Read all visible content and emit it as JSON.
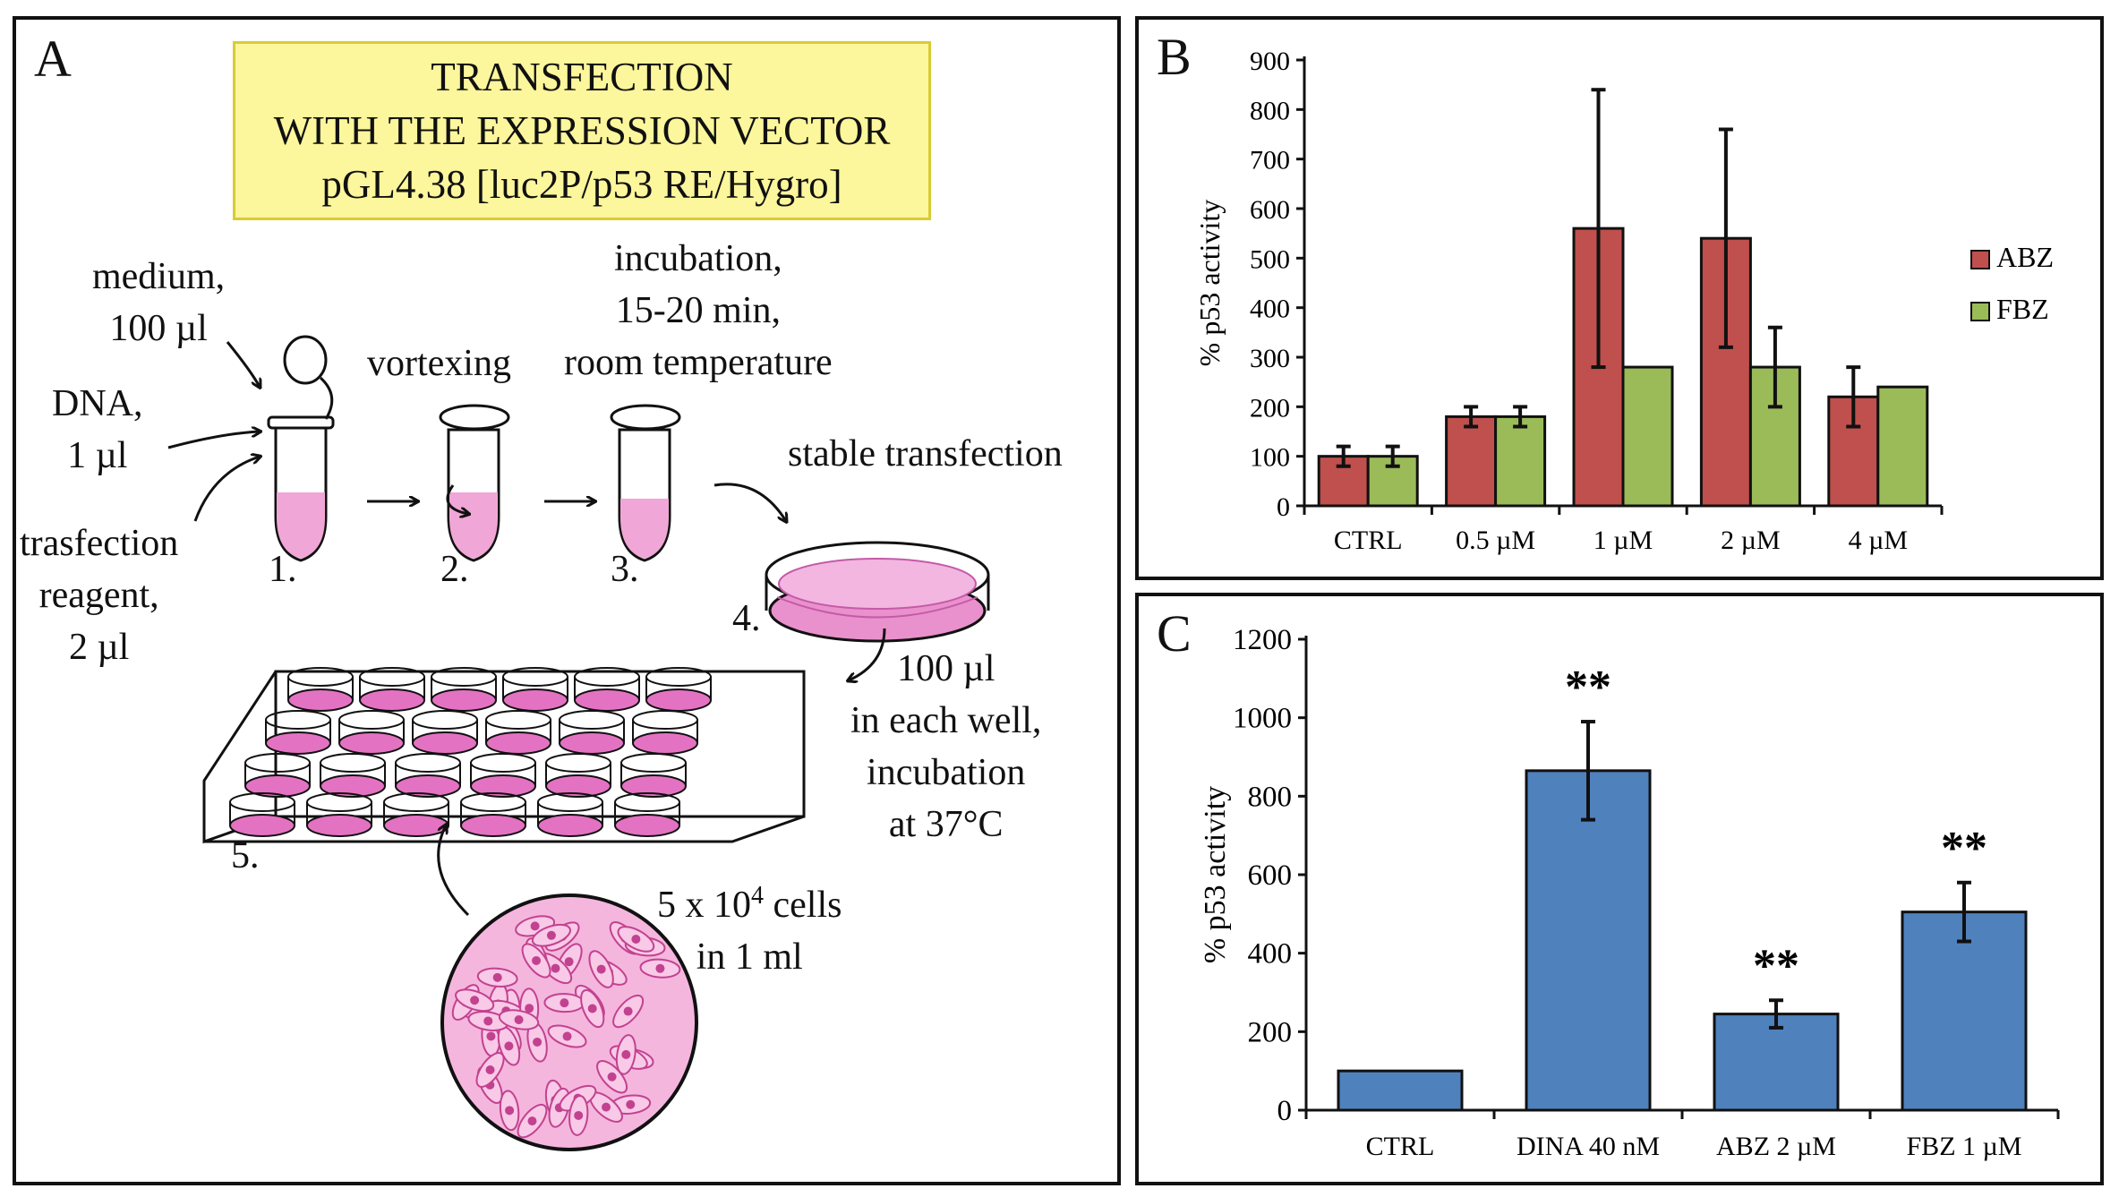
{
  "panel_a": {
    "label": "A",
    "title_lines": [
      "TRANSFECTION",
      "WITH THE EXPRESSION VECTOR",
      "pGL4.38 [luc2P/p53 RE/Hygro]"
    ],
    "medium": [
      "medium,",
      "100 µl"
    ],
    "dna": [
      "DNA,",
      "1 µl"
    ],
    "reagent": [
      "trasfection",
      "reagent,",
      "2 µl"
    ],
    "vortexing": "vortexing",
    "incubation": [
      "incubation,",
      "15-20 min,",
      "room temperature"
    ],
    "stable": "stable transfection",
    "well": [
      "100 µl",
      "in each well,",
      "incubation",
      "at 37°C"
    ],
    "cells_pre": "5 x 10",
    "cells_exp": "4",
    "cells_post": " cells",
    "cells_line2": "in 1 ml",
    "steps": [
      "1.",
      "2.",
      "3.",
      "4.",
      "5."
    ],
    "colors": {
      "liquid": "#f0a6d6",
      "plate": "#e472c2",
      "cell_bg": "#f5b6de",
      "cell": "#c2428f"
    }
  },
  "chart_data": [
    {
      "panel_label": "B",
      "type": "bar",
      "categories": [
        "CTRL",
        "0.5 µM",
        "1 µM",
        "2 µM",
        "4 µM"
      ],
      "series": [
        {
          "name": "ABZ",
          "color": "#c0504d",
          "values": [
            100,
            180,
            560,
            540,
            220
          ],
          "errors": [
            20,
            20,
            280,
            220,
            60
          ]
        },
        {
          "name": "FBZ",
          "color": "#9bbb59",
          "values": [
            100,
            180,
            280,
            280,
            240
          ],
          "errors": [
            20,
            20,
            0,
            80,
            0
          ]
        }
      ],
      "ylabel": "% p53 activity",
      "ylim": [
        0,
        900
      ],
      "yticks": [
        0,
        100,
        200,
        300,
        400,
        500,
        600,
        700,
        800,
        900
      ],
      "legend": "right",
      "grid": false
    },
    {
      "panel_label": "C",
      "type": "bar",
      "categories": [
        "CTRL",
        "DINA 40 nM",
        "ABZ 2 µM",
        "FBZ 1 µM"
      ],
      "series": [
        {
          "color": "#4f81bd",
          "values": [
            100,
            865,
            245,
            505
          ],
          "errors": [
            0,
            125,
            35,
            75
          ]
        }
      ],
      "annotations": [
        "",
        "**",
        "**",
        "**"
      ],
      "ylabel": "% p53 activity",
      "ylim": [
        0,
        1200
      ],
      "yticks": [
        0,
        200,
        400,
        600,
        800,
        1000,
        1200
      ],
      "grid": false
    }
  ]
}
